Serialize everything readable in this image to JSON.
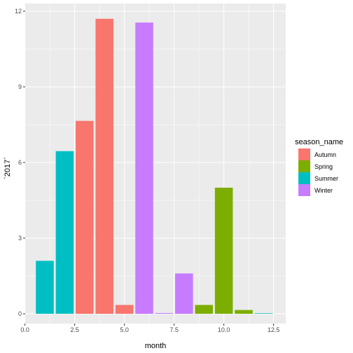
{
  "chart_data": {
    "type": "bar",
    "xlabel": "month",
    "ylabel": "`2017`",
    "xlim": [
      0,
      13
    ],
    "ylim": [
      0,
      12
    ],
    "x_ticks": [
      {
        "value": 0,
        "label": "0.0"
      },
      {
        "value": 2.5,
        "label": "2.5"
      },
      {
        "value": 5,
        "label": "5.0"
      },
      {
        "value": 7.5,
        "label": "7.5"
      },
      {
        "value": 10,
        "label": "10.0"
      },
      {
        "value": 12.5,
        "label": "12.5"
      }
    ],
    "y_ticks": [
      {
        "value": 0,
        "label": "0"
      },
      {
        "value": 3,
        "label": "3"
      },
      {
        "value": 6,
        "label": "6"
      },
      {
        "value": 9,
        "label": "9"
      },
      {
        "value": 12,
        "label": "12"
      }
    ],
    "grid": true,
    "legend": {
      "title": "season_name",
      "position": "right",
      "entries": [
        {
          "name": "Autumn",
          "color": "#F8766D"
        },
        {
          "name": "Spring",
          "color": "#7CAE00"
        },
        {
          "name": "Summer",
          "color": "#00BFC4"
        },
        {
          "name": "Winter",
          "color": "#C77CFF"
        }
      ]
    },
    "bars": [
      {
        "month": 1,
        "value": 2.1,
        "season": "Summer"
      },
      {
        "month": 2,
        "value": 6.45,
        "season": "Summer"
      },
      {
        "month": 3,
        "value": 7.65,
        "season": "Autumn"
      },
      {
        "month": 4,
        "value": 11.7,
        "season": "Autumn"
      },
      {
        "month": 5,
        "value": 0.35,
        "season": "Autumn"
      },
      {
        "month": 6,
        "value": 11.55,
        "season": "Winter"
      },
      {
        "month": 7,
        "value": 0.03,
        "season": "Winter"
      },
      {
        "month": 8,
        "value": 1.6,
        "season": "Winter"
      },
      {
        "month": 9,
        "value": 0.35,
        "season": "Spring"
      },
      {
        "month": 10,
        "value": 5.0,
        "season": "Spring"
      },
      {
        "month": 11,
        "value": 0.15,
        "season": "Spring"
      },
      {
        "month": 12,
        "value": 0.02,
        "season": "Summer"
      }
    ]
  }
}
